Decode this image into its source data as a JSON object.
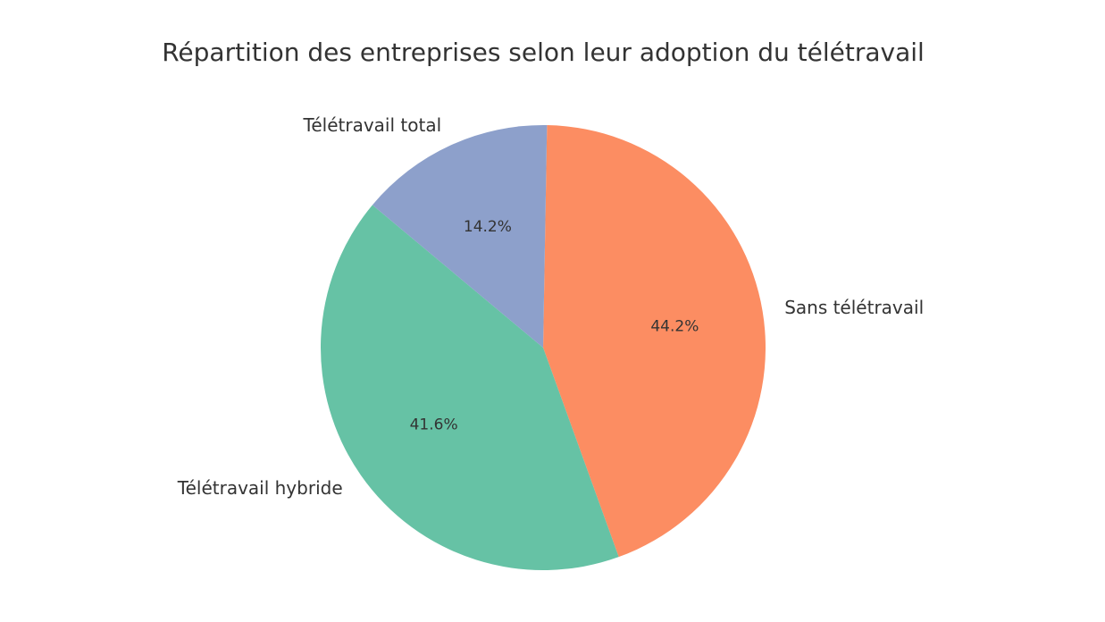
{
  "chart_data": {
    "type": "pie",
    "title": "Répartition des entreprises selon leur adoption du télétravail",
    "start_angle_deg": 89,
    "direction": "clockwise",
    "slices": [
      {
        "label": "Sans télétravail",
        "value": 44.2,
        "pct_label": "44.2%",
        "color": "#fc8d62"
      },
      {
        "label": "Télétravail hybride",
        "value": 41.6,
        "pct_label": "41.6%",
        "color": "#66c2a5"
      },
      {
        "label": "Télétravail total",
        "value": 14.2,
        "pct_label": "14.2%",
        "color": "#8da0cb"
      }
    ]
  }
}
